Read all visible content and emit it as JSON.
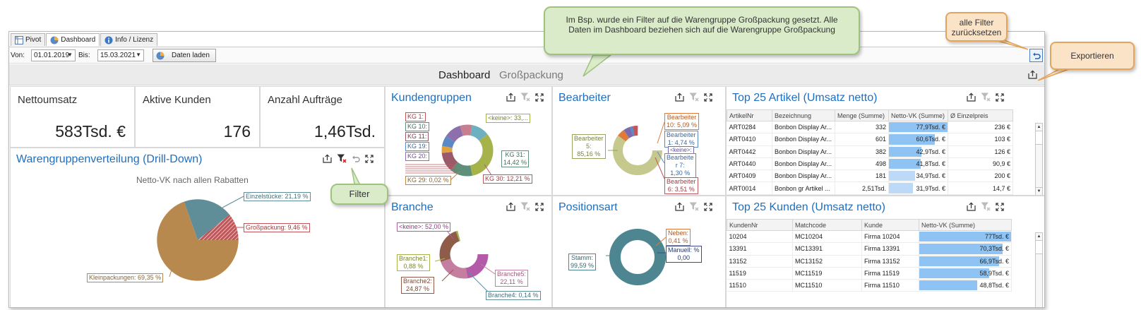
{
  "tabs": [
    {
      "label": "Pivot",
      "icon": "pivot-grid-icon"
    },
    {
      "label": "Dashboard",
      "icon": "dashboard-pie-icon"
    },
    {
      "label": "Info / Lizenz",
      "icon": "info-icon"
    }
  ],
  "toolbar": {
    "von_label": "Von:",
    "von_value": "01.01.2019",
    "bis_label": "Bis:",
    "bis_value": "15.03.2021",
    "load_label": "Daten laden"
  },
  "header": {
    "title": "Dashboard",
    "filter": "Großpackung"
  },
  "kpis": [
    {
      "label": "Nettoumsatz",
      "value": "583Tsd. €"
    },
    {
      "label": "Aktive Kunden",
      "value": "176"
    },
    {
      "label": "Anzahl Aufträge",
      "value": "1,46Tsd."
    }
  ],
  "warengruppen": {
    "title": "Warengruppenverteilung (Drill-Down)",
    "subtitle": "Netto-VK nach allen Rabatten",
    "labels": [
      "Einzelstücke: 21,19 %",
      "Großpackung: 9,46 %",
      "Kleinpackungen: 69,35 %"
    ]
  },
  "kundengruppen": {
    "title": "Kundengruppen",
    "labels": [
      "KG 1:",
      "KG 10:",
      "KG 11:",
      "KG 19:",
      "KG 20:",
      "<keine>: 33,...",
      "KG 31:\n14,42 %",
      "KG 29: 0,02 %",
      "KG 30: 12,21 %"
    ]
  },
  "bearbeiter": {
    "title": "Bearbeiter",
    "labels": [
      "Bearbeiter\n10: 5,09 %",
      "Bearbeiter\n1: 4,74 %",
      "<keine>:",
      "Bearbeite\nr 7:\n1,30 %",
      "Bearbeiter\n6: 3,51 %",
      "Bearbeiter\n5:\n85,16 %"
    ]
  },
  "branche": {
    "title": "Branche",
    "labels": [
      "<keine>: 52,00 %",
      "Branche1:\n0,88 %",
      "Branche2:\n24,87 %",
      "Branche5:\n22,11 %",
      "Branche4: 0,14 %"
    ]
  },
  "positionsart": {
    "title": "Positionsart",
    "labels": [
      "Neben:\n0,41 %",
      "Manuell: %\n0,00",
      "Stamm:\n99,59 %"
    ]
  },
  "top_artikel": {
    "title": "Top 25 Artikel (Umsatz netto)",
    "columns": [
      "ArtikelNr",
      "Bezeichnung",
      "Menge (Summe)",
      "Netto-VK (Summe)",
      "Ø Einzelpreis"
    ],
    "rows": [
      [
        "ART0284",
        "Bonbon Display Ar...",
        "332",
        "77,9Tsd. €",
        "236 €"
      ],
      [
        "ART0410",
        "Bonbon Display Ar...",
        "601",
        "60,6Tsd. €",
        "103 €"
      ],
      [
        "ART0442",
        "Bonbon Display Ar...",
        "382",
        "42,9Tsd. €",
        "126 €"
      ],
      [
        "ART0440",
        "Bonbon Display Ar...",
        "498",
        "41,8Tsd. €",
        "90,9 €"
      ],
      [
        "ART0409",
        "Bonbon Display Ar...",
        "181",
        "34,9Tsd. €",
        "200 €"
      ],
      [
        "ART0014",
        "Bonbon gr Artikel ...",
        "2,51Tsd.",
        "31,9Tsd. €",
        "14,7 €"
      ]
    ],
    "bar_fractions": [
      1.0,
      0.78,
      0.55,
      0.54,
      0.45,
      0.41
    ]
  },
  "top_kunden": {
    "title": "Top 25 Kunden (Umsatz netto)",
    "columns": [
      "KundenNr",
      "Matchcode",
      "Kunde",
      "Netto-VK (Summe)"
    ],
    "rows": [
      [
        "10204",
        "MC10204",
        "Firma 10204",
        "77Tsd. €"
      ],
      [
        "13391",
        "MC13391",
        "Firma 13391",
        "70,3Tsd. €"
      ],
      [
        "13152",
        "MC13152",
        "Firma 13152",
        "66,9Tsd. €"
      ],
      [
        "11519",
        "MC11519",
        "Firma 11519",
        "58,9Tsd. €"
      ],
      [
        "11510",
        "MC11510",
        "Firma 11510",
        "48,8Tsd. €"
      ]
    ],
    "bar_fractions": [
      1.0,
      0.91,
      0.87,
      0.76,
      0.63
    ]
  },
  "callouts": {
    "main": "Im Bsp. wurde ein Filter auf die Warengruppe Großpackung gesetzt. Alle Daten im Dashboard beziehen sich auf die Warengruppe Großpackung",
    "reset": "alle Filter zurücksetzen",
    "export": "Exportieren",
    "filter": "Filter"
  },
  "colors": {
    "title_blue": "#1d6fc2",
    "bar_blue": "#8fc3f3",
    "callout_green": "#d9ebc8",
    "callout_orange": "#fbe3c7"
  }
}
